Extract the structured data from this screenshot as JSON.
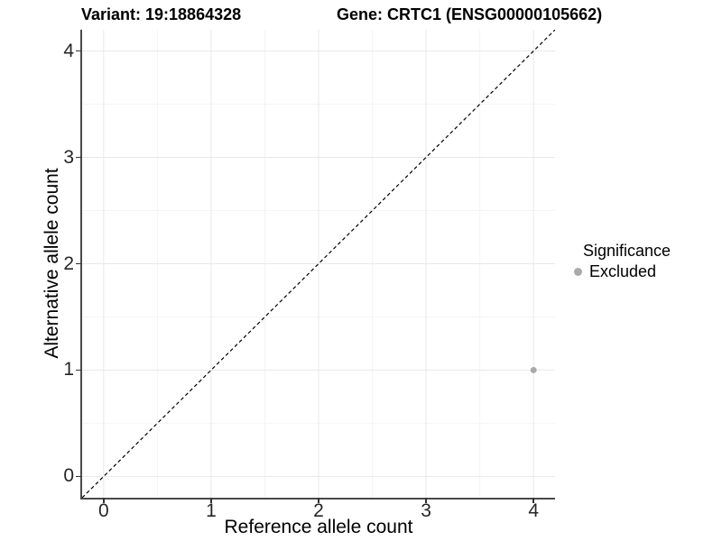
{
  "header": {
    "title_left": "Variant: 19:18864328",
    "title_right": "Gene: CRTC1 (ENSG00000105662)"
  },
  "axes": {
    "x": {
      "label": "Reference allele count"
    },
    "y": {
      "label": "Alternative allele count"
    }
  },
  "legend": {
    "title": "Significance",
    "items": [
      {
        "label": "Excluded",
        "color": "#aaaaaa"
      }
    ]
  },
  "colors": {
    "background": "#ffffff",
    "grid_major": "#e8e8e8",
    "grid_minor": "#f4f4f4",
    "axis_line": "#4a4a4a",
    "tick_mark": "#333333",
    "tick_text": "#262626",
    "identity_line": "#000000",
    "point": "#aaaaaa"
  },
  "chart_data": {
    "type": "scatter",
    "title": "Variant: 19:18864328 | Gene: CRTC1 (ENSG00000105662)",
    "xlabel": "Reference allele count",
    "ylabel": "Alternative allele count",
    "xlim": [
      -0.2,
      4.2
    ],
    "ylim": [
      -0.2,
      4.2
    ],
    "x_ticks": [
      0,
      1,
      2,
      3,
      4
    ],
    "y_ticks": [
      0,
      1,
      2,
      3,
      4
    ],
    "x_minor_ticks": [
      0.5,
      1.5,
      2.5,
      3.5
    ],
    "y_minor_ticks": [
      0.5,
      1.5,
      2.5,
      3.5
    ],
    "grid": {
      "major": true,
      "minor": true
    },
    "reference_line": {
      "type": "identity",
      "slope": 1,
      "intercept": 0,
      "style": "dashed",
      "color": "#000000"
    },
    "legend_position": "right",
    "series": [
      {
        "name": "Excluded",
        "color": "#aaaaaa",
        "points": [
          {
            "x": 4,
            "y": 1
          }
        ]
      }
    ]
  }
}
